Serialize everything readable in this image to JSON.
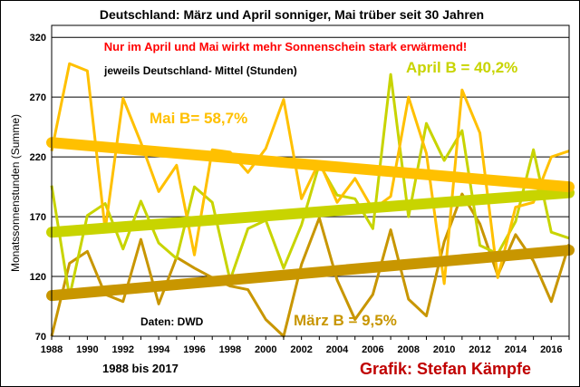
{
  "chart_data": {
    "type": "line",
    "title": "Deutschland: März und April sonniger, Mai trüber seit 30 Jahren",
    "ylabel": "Monatssonnenstunden (Summe)",
    "xlabel": "",
    "ylim": [
      70,
      330
    ],
    "xlim": [
      1988,
      2017
    ],
    "yticks": [
      70,
      120,
      170,
      220,
      270,
      320
    ],
    "xticks": [
      1988,
      1990,
      1992,
      1994,
      1996,
      1998,
      2000,
      2002,
      2004,
      2006,
      2008,
      2010,
      2012,
      2014,
      2016
    ],
    "years": [
      1988,
      1989,
      1990,
      1991,
      1992,
      1993,
      1994,
      1995,
      1996,
      1997,
      1998,
      1999,
      2000,
      2001,
      2002,
      2003,
      2004,
      2005,
      2006,
      2007,
      2008,
      2009,
      2010,
      2011,
      2012,
      2013,
      2014,
      2015,
      2016,
      2017
    ],
    "series": [
      {
        "name": "Mai",
        "color": "#ffc000",
        "values": [
          225,
          298,
          292,
          159,
          269,
          232,
          191,
          213,
          138,
          226,
          224,
          207,
          227,
          268,
          185,
          216,
          182,
          202,
          176,
          187,
          270,
          223,
          114,
          276,
          240,
          119,
          178,
          182,
          220,
          225
        ],
        "trend": [
          232,
          195
        ],
        "label": "Mai B= 58,7%"
      },
      {
        "name": "April",
        "color": "#c8d400",
        "values": [
          196,
          103,
          171,
          181,
          143,
          183,
          148,
          135,
          195,
          182,
          117,
          160,
          167,
          127,
          163,
          214,
          188,
          185,
          160,
          289,
          170,
          248,
          217,
          242,
          146,
          139,
          166,
          226,
          157,
          152
        ],
        "trend": [
          157,
          190
        ],
        "label": "April B = 40,2%"
      },
      {
        "name": "März",
        "color": "#c89600",
        "values": [
          70,
          131,
          141,
          105,
          99,
          151,
          97,
          136,
          127,
          119,
          112,
          109,
          84,
          70,
          130,
          169,
          117,
          84,
          105,
          159,
          101,
          87,
          149,
          189,
          164,
          121,
          155,
          133,
          99,
          147
        ],
        "trend": [
          104,
          142
        ],
        "label": "März B = 9,5%"
      }
    ]
  },
  "annotations": {
    "headline_red": "Nur im April und Mai wirkt mehr Sonnenschein stark erwärmend!",
    "subtitle": "jeweils Deutschland- Mittel (Stunden)",
    "source": "Daten: DWD",
    "period": "1988 bis 2017",
    "credit": "Grafik: Stefan Kämpfe"
  }
}
